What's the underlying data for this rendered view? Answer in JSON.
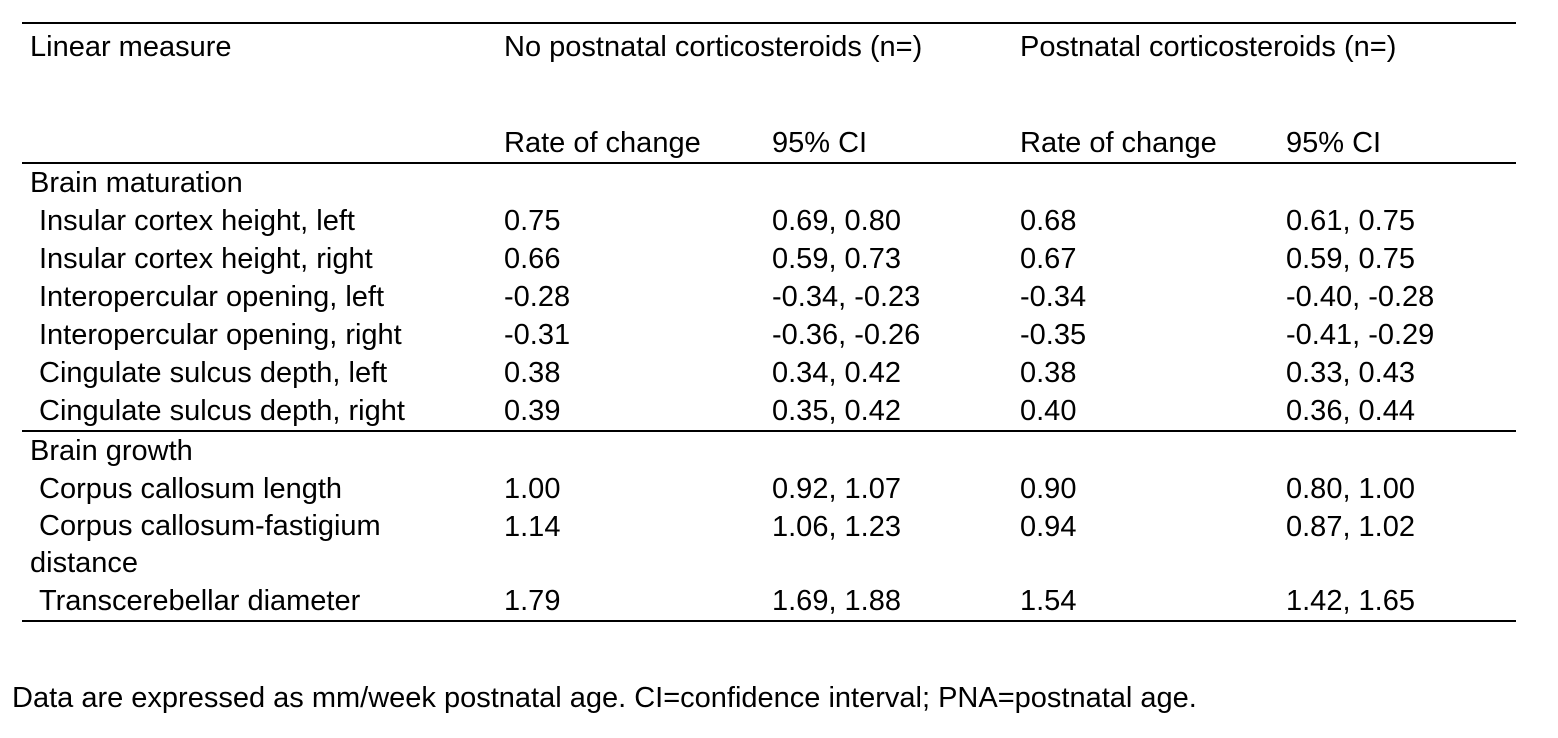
{
  "table": {
    "header": {
      "measure_label": "Linear measure",
      "group1_label": "No postnatal corticosteroids (n=)",
      "group2_label": "Postnatal corticosteroids (n=)",
      "rate_label": "Rate of change",
      "ci_label": "95% CI"
    },
    "sections": [
      {
        "title": "Brain maturation",
        "rows": [
          {
            "label": "Insular cortex height, left",
            "rate1": "0.75",
            "ci1": "0.69, 0.80",
            "rate2": "0.68",
            "ci2": "0.61, 0.75"
          },
          {
            "label": "Insular cortex height, right",
            "rate1": "0.66",
            "ci1": "0.59, 0.73",
            "rate2": "0.67",
            "ci2": "0.59, 0.75"
          },
          {
            "label": "Interopercular opening, left",
            "rate1": "-0.28",
            "ci1": "-0.34, -0.23",
            "rate2": "-0.34",
            "ci2": "-0.40, -0.28"
          },
          {
            "label": "Interopercular opening, right",
            "rate1": "-0.31",
            "ci1": "-0.36, -0.26",
            "rate2": "-0.35",
            "ci2": "-0.41, -0.29"
          },
          {
            "label": "Cingulate sulcus depth, left",
            "rate1": "0.38",
            "ci1": "0.34, 0.42",
            "rate2": "0.38",
            "ci2": "0.33, 0.43"
          },
          {
            "label": "Cingulate sulcus depth, right",
            "rate1": "0.39",
            "ci1": "0.35, 0.42",
            "rate2": "0.40",
            "ci2": "0.36, 0.44"
          }
        ]
      },
      {
        "title": "Brain growth",
        "rows": [
          {
            "label": "Corpus callosum length",
            "rate1": "1.00",
            "ci1": "0.92, 1.07",
            "rate2": "0.90",
            "ci2": "0.80, 1.00"
          },
          {
            "label": "Corpus callosum-fastigium distance",
            "rate1": "1.14",
            "ci1": "1.06, 1.23",
            "rate2": "0.94",
            "ci2": "0.87, 1.02"
          },
          {
            "label": "Transcerebellar diameter",
            "rate1": "1.79",
            "ci1": "1.69, 1.88",
            "rate2": "1.54",
            "ci2": "1.42, 1.65"
          }
        ]
      }
    ]
  },
  "footnote": "Data are expressed as mm/week postnatal age.  CI=confidence interval; PNA=postnatal age."
}
